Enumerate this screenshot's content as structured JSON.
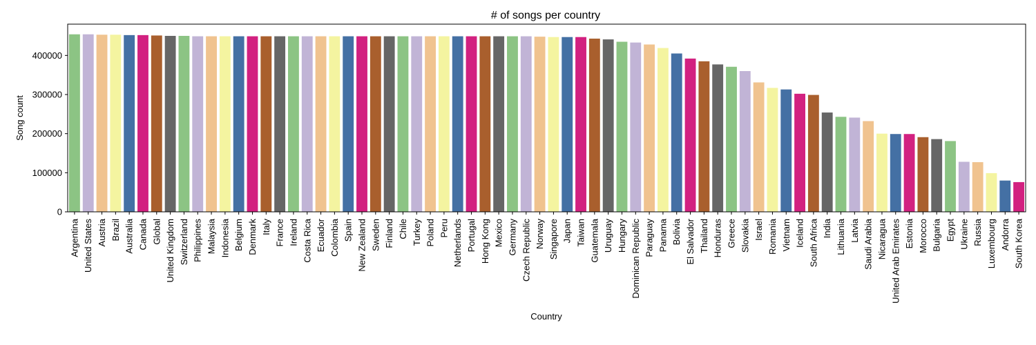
{
  "chart_data": {
    "type": "bar",
    "title": "# of songs per country",
    "xlabel": "Country",
    "ylabel": "Song count",
    "ylim": [
      0,
      480000
    ],
    "yticks": [
      0,
      100000,
      200000,
      300000,
      400000
    ],
    "ytick_labels": [
      "0",
      "100000",
      "200000",
      "300000",
      "400000"
    ],
    "palette": [
      "#8cc484",
      "#c1b4d6",
      "#f0c38f",
      "#f4f4a0",
      "#4470a4",
      "#d22180",
      "#a95f2d",
      "#666666"
    ],
    "grid": false,
    "legend": "none",
    "categories": [
      "Argentina",
      "United States",
      "Austria",
      "Brazil",
      "Australia",
      "Canada",
      "Global",
      "United Kingdom",
      "Switzerland",
      "Philippines",
      "Malaysia",
      "Indonesia",
      "Belgium",
      "Denmark",
      "Italy",
      "France",
      "Ireland",
      "Costa Rica",
      "Ecuador",
      "Colombia",
      "Spain",
      "New Zealand",
      "Sweden",
      "Finland",
      "Chile",
      "Turkey",
      "Poland",
      "Peru",
      "Netherlands",
      "Portugal",
      "Hong Kong",
      "Mexico",
      "Germany",
      "Czech Republic",
      "Norway",
      "Singapore",
      "Japan",
      "Taiwan",
      "Guatemala",
      "Uruguay",
      "Hungary",
      "Dominican Republic",
      "Paraguay",
      "Panama",
      "Bolivia",
      "El Salvador",
      "Thailand",
      "Honduras",
      "Greece",
      "Slovakia",
      "Israel",
      "Romania",
      "Vietnam",
      "Iceland",
      "South Africa",
      "India",
      "Lithuania",
      "Latvia",
      "Saudi Arabia",
      "Nicaragua",
      "United Arab Emirates",
      "Estonia",
      "Morocco",
      "Bulgaria",
      "Egypt",
      "Ukraine",
      "Russia",
      "Luxembourg",
      "Andorra",
      "South Korea"
    ],
    "values": [
      454000,
      454000,
      453000,
      453000,
      452000,
      452000,
      451000,
      450000,
      450000,
      449000,
      449000,
      449000,
      449000,
      449000,
      449000,
      449000,
      449000,
      449000,
      449000,
      449000,
      449000,
      449000,
      449000,
      449000,
      449000,
      449000,
      449000,
      449000,
      449000,
      449000,
      449000,
      449000,
      449000,
      449000,
      448000,
      447000,
      447000,
      447000,
      443000,
      441000,
      435000,
      433000,
      428000,
      419000,
      405000,
      392000,
      385000,
      377000,
      371000,
      360000,
      331000,
      317000,
      313000,
      302000,
      299000,
      254000,
      243000,
      241000,
      232000,
      200000,
      199000,
      199000,
      191000,
      186000,
      181000,
      128000,
      127000,
      99000,
      80000,
      76000
    ]
  }
}
